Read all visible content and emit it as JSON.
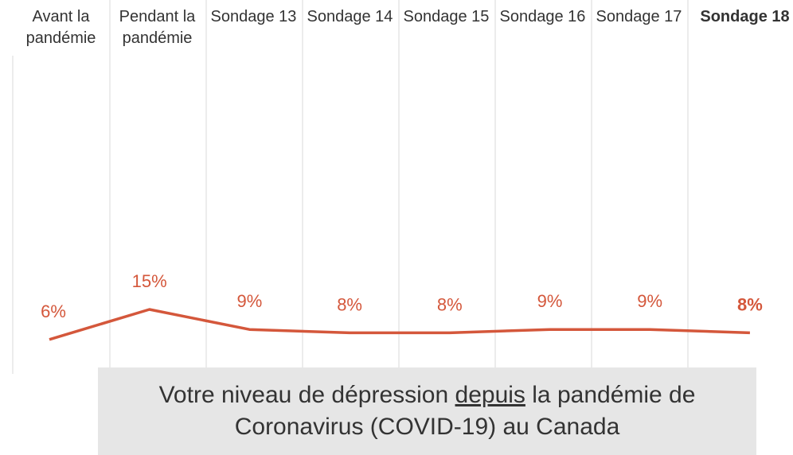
{
  "chart_data": {
    "type": "line",
    "categories": [
      "Avant la pandémie",
      "Pendant la pandémie",
      "Sondage 13",
      "Sondage 14",
      "Sondage 15",
      "Sondage 16",
      "Sondage 17",
      "Sondage 18"
    ],
    "values": [
      6,
      15,
      9,
      8,
      8,
      9,
      9,
      8
    ],
    "value_labels": [
      "6%",
      "15%",
      "9%",
      "8%",
      "8%",
      "9%",
      "9%",
      "8%"
    ],
    "color": "#d4573b",
    "ylim": [
      0,
      100
    ],
    "caption_before": "Votre niveau de dépression",
    "caption_underlined": "depuis",
    "caption_after": "la pandémie de Coronavirus (COVID-19) au Canada"
  }
}
